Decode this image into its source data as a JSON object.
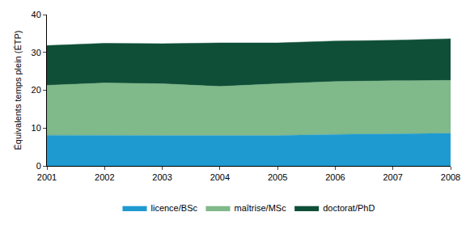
{
  "chart_data": {
    "type": "area",
    "stacked": true,
    "y_label": "Équivalents temps plein (ÉTP)",
    "x": [
      2001,
      2002,
      2003,
      2004,
      2005,
      2006,
      2007,
      2008
    ],
    "xlim": [
      2001,
      2008
    ],
    "xticks": [
      2001,
      2002,
      2003,
      2004,
      2005,
      2006,
      2007,
      2008
    ],
    "ylim": [
      0,
      40
    ],
    "yticks": [
      0,
      10,
      20,
      30,
      40
    ],
    "grid": false,
    "legend": "bottom",
    "series": [
      {
        "name": "licence/BSc",
        "color": "#1f9ad1",
        "values": [
          8.1,
          8.0,
          8.0,
          8.0,
          8.0,
          8.3,
          8.5,
          8.6
        ]
      },
      {
        "name": "maîtrise/MSc",
        "color": "#80b98a",
        "values": [
          13.2,
          13.9,
          13.7,
          13.0,
          13.7,
          14.0,
          14.0,
          14.0
        ]
      },
      {
        "name": "doctorat/PhD",
        "color": "#0f4f37",
        "values": [
          10.5,
          10.5,
          10.6,
          11.5,
          10.8,
          10.7,
          10.7,
          11.0
        ]
      }
    ]
  }
}
